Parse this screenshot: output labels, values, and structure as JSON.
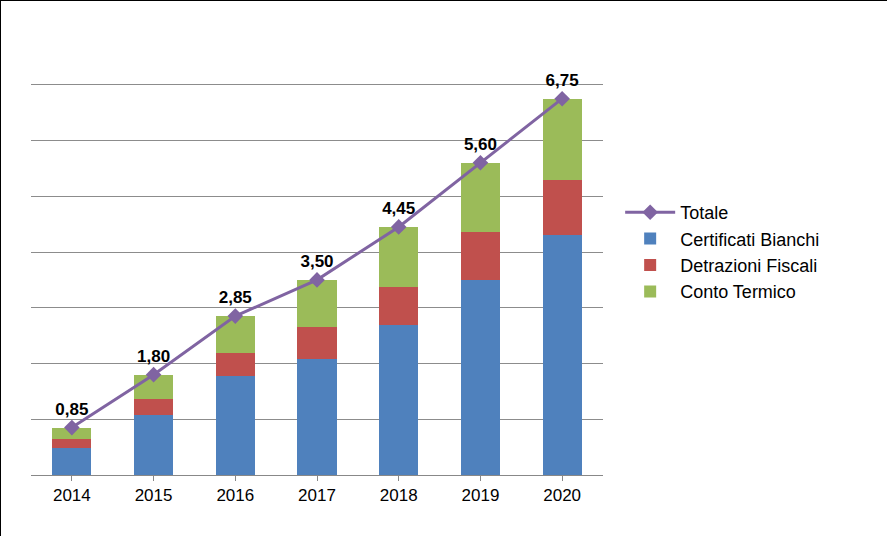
{
  "chart_data": {
    "type": "bar",
    "stacked": true,
    "categories": [
      "2014",
      "2015",
      "2016",
      "2017",
      "2018",
      "2019",
      "2020"
    ],
    "series": [
      {
        "name": "Certificati Bianchi",
        "type": "bar",
        "color": "#4f81bd",
        "values": [
          0.48,
          1.08,
          1.77,
          2.08,
          2.69,
          3.49,
          4.3
        ]
      },
      {
        "name": "Detrazioni Fiscali",
        "type": "bar",
        "color": "#c0504d",
        "values": [
          0.16,
          0.29,
          0.42,
          0.57,
          0.69,
          0.86,
          1.0
        ]
      },
      {
        "name": "Conto Termico",
        "type": "bar",
        "color": "#9bbb59",
        "values": [
          0.21,
          0.43,
          0.66,
          0.85,
          1.07,
          1.25,
          1.45
        ]
      },
      {
        "name": "Totale",
        "type": "line",
        "color": "#8064a2",
        "marker": "diamond",
        "data_labels": true,
        "values": [
          0.85,
          1.8,
          2.85,
          3.5,
          4.45,
          5.6,
          6.75
        ],
        "value_labels": [
          "0,85",
          "1,80",
          "2,85",
          "3,50",
          "4,45",
          "5,60",
          "6,75"
        ]
      }
    ],
    "ylim": [
      0,
      8
    ],
    "yticks": [
      0,
      1,
      2,
      3,
      4,
      5,
      6,
      7,
      8
    ],
    "grid": true,
    "tick_labels": "x",
    "legend": "right"
  }
}
